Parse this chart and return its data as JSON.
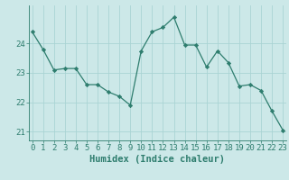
{
  "x": [
    0,
    1,
    2,
    3,
    4,
    5,
    6,
    7,
    8,
    9,
    10,
    11,
    12,
    13,
    14,
    15,
    16,
    17,
    18,
    19,
    20,
    21,
    22,
    23
  ],
  "y": [
    24.4,
    23.8,
    23.1,
    23.15,
    23.15,
    22.6,
    22.6,
    22.35,
    22.2,
    21.9,
    23.75,
    24.4,
    24.55,
    24.9,
    23.95,
    23.95,
    23.2,
    23.75,
    23.35,
    22.55,
    22.6,
    22.4,
    21.7,
    21.05
  ],
  "line_color": "#2e7d6e",
  "marker": "D",
  "marker_size": 2.2,
  "bg_color": "#cce8e8",
  "grid_color_major": "#aad4d4",
  "grid_color_minor": "#bedddd",
  "xlabel": "Humidex (Indice chaleur)",
  "ylim": [
    20.7,
    25.3
  ],
  "yticks": [
    21,
    22,
    23,
    24
  ],
  "xticks": [
    0,
    1,
    2,
    3,
    4,
    5,
    6,
    7,
    8,
    9,
    10,
    11,
    12,
    13,
    14,
    15,
    16,
    17,
    18,
    19,
    20,
    21,
    22,
    23
  ],
  "tick_fontsize": 6.5,
  "xlabel_fontsize": 7.5,
  "xlim": [
    -0.3,
    23.3
  ]
}
